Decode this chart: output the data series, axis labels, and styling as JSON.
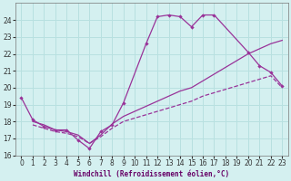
{
  "xlabel": "Windchill (Refroidissement éolien,°C)",
  "bg_color": "#d4f0f0",
  "line_color": "#993399",
  "grid_color": "#b8e0e0",
  "xlim": [
    -0.5,
    23.5
  ],
  "ylim": [
    16,
    25
  ],
  "yticks": [
    16,
    17,
    18,
    19,
    20,
    21,
    22,
    23,
    24
  ],
  "xticks": [
    0,
    1,
    2,
    3,
    4,
    5,
    6,
    7,
    8,
    9,
    10,
    11,
    12,
    13,
    14,
    15,
    16,
    17,
    18,
    19,
    20,
    21,
    22,
    23
  ],
  "series1_x": [
    0,
    1,
    2,
    3,
    4,
    5,
    6,
    7,
    8,
    9,
    11,
    12,
    13,
    14,
    15,
    16,
    17,
    20,
    21,
    22,
    23
  ],
  "series1_y": [
    19.4,
    18.1,
    17.7,
    17.5,
    17.5,
    16.9,
    16.4,
    17.4,
    17.8,
    19.1,
    22.6,
    24.2,
    24.3,
    24.2,
    23.6,
    24.3,
    24.3,
    22.1,
    21.3,
    20.9,
    20.1
  ],
  "series2_x": [
    1,
    2,
    3,
    4,
    5,
    6,
    7,
    8,
    9,
    10,
    11,
    12,
    13,
    14,
    15,
    16,
    17,
    18,
    19,
    20,
    21,
    22,
    23
  ],
  "series2_y": [
    18.0,
    17.8,
    17.5,
    17.4,
    17.2,
    16.7,
    17.2,
    17.85,
    18.3,
    18.6,
    18.9,
    19.2,
    19.5,
    19.8,
    20.0,
    20.4,
    20.8,
    21.2,
    21.6,
    22.0,
    22.3,
    22.6,
    22.8
  ],
  "series3_x": [
    1,
    2,
    3,
    4,
    5,
    6,
    7,
    8,
    9,
    10,
    11,
    12,
    13,
    14,
    15,
    16,
    17,
    18,
    19,
    20,
    21,
    22,
    23
  ],
  "series3_y": [
    17.8,
    17.6,
    17.4,
    17.3,
    17.1,
    16.7,
    17.1,
    17.6,
    18.0,
    18.2,
    18.4,
    18.6,
    18.8,
    19.0,
    19.2,
    19.5,
    19.7,
    19.9,
    20.1,
    20.3,
    20.5,
    20.7,
    20.0
  ]
}
